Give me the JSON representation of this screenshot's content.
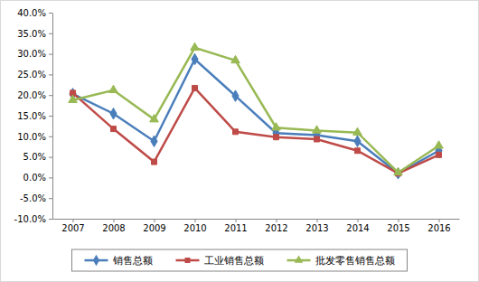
{
  "chart_data": {
    "type": "line",
    "categories": [
      "2007",
      "2008",
      "2009",
      "2010",
      "2011",
      "2012",
      "2013",
      "2014",
      "2015",
      "2016"
    ],
    "series": [
      {
        "name": "销售总额",
        "color": "#4a7ebb",
        "marker": "diamond",
        "values": [
          20.3,
          15.5,
          8.8,
          28.7,
          19.8,
          10.8,
          10.3,
          8.8,
          1.0,
          6.5
        ]
      },
      {
        "name": "工业销售总额",
        "color": "#be4b48",
        "marker": "square",
        "values": [
          20.5,
          11.8,
          3.8,
          21.7,
          11.1,
          9.8,
          9.3,
          6.5,
          1.0,
          5.5
        ]
      },
      {
        "name": "批发零售销售总额",
        "color": "#98b954",
        "marker": "triangle",
        "values": [
          18.8,
          21.2,
          14.1,
          31.5,
          28.4,
          12.1,
          11.4,
          10.9,
          1.2,
          7.7
        ]
      }
    ],
    "ylim": [
      -10,
      40
    ],
    "yticks": [
      {
        "value": -10,
        "label": "-10.0%"
      },
      {
        "value": -5,
        "label": "-5.0%"
      },
      {
        "value": 0,
        "label": "0.0%"
      },
      {
        "value": 5,
        "label": "5.0%"
      },
      {
        "value": 10,
        "label": "10.0%"
      },
      {
        "value": 15,
        "label": "15.0%"
      },
      {
        "value": 20,
        "label": "20.0%"
      },
      {
        "value": 25,
        "label": "25.0%"
      },
      {
        "value": 30,
        "label": "30.0%"
      },
      {
        "value": 35,
        "label": "35.0%"
      },
      {
        "value": 40,
        "label": "40.0%"
      }
    ],
    "grid": false,
    "legend": "bottom"
  }
}
